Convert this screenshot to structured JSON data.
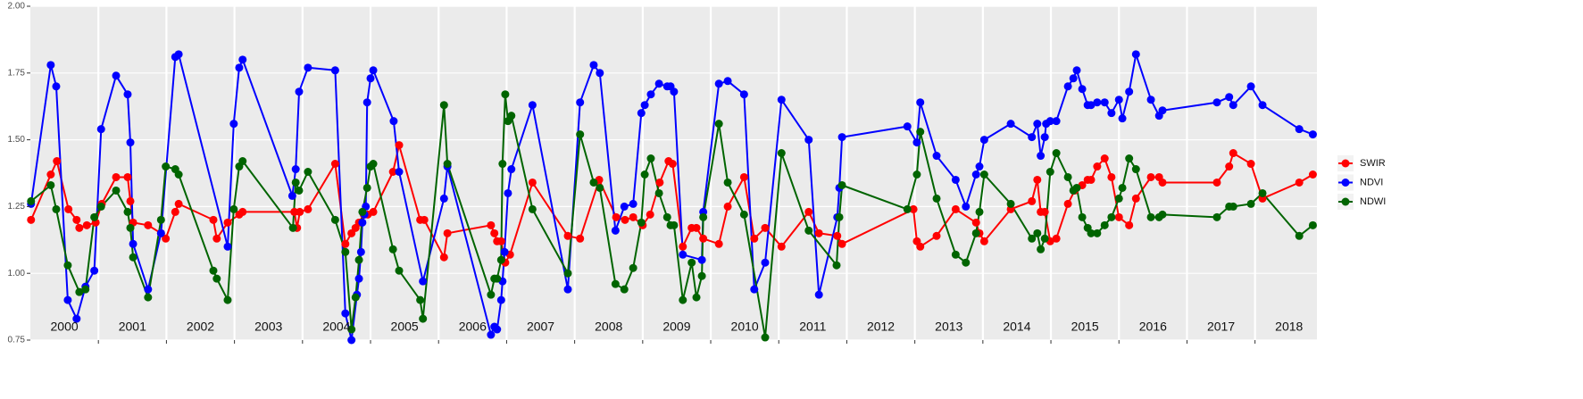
{
  "chart_data": {
    "type": "line",
    "xlim": [
      2000,
      2018.91
    ],
    "ylim": [
      0.75,
      2.0
    ],
    "yticks": [
      0.75,
      {
        "value": 1.0,
        "label": "1.00"
      },
      1.25,
      {
        "value": 1.5,
        "label": "1.50"
      },
      1.75,
      {
        "value": 2.0,
        "label": "2.00"
      }
    ],
    "xticks": [
      2001,
      2002,
      2003,
      2004,
      2005,
      2006,
      2007,
      2008,
      2009,
      2010,
      2011,
      2012,
      2013,
      2014,
      2015,
      2016,
      2017,
      2018
    ],
    "year_labels": [
      2000,
      2001,
      2002,
      2003,
      2004,
      2005,
      2006,
      2007,
      2008,
      2009,
      2010,
      2011,
      2012,
      2013,
      2014,
      2015,
      2016,
      2017,
      2018
    ],
    "grid": true,
    "legend": "right",
    "series": [
      {
        "name": "SWIR",
        "color": "#ff0000",
        "x": [
          2000.01,
          2000.3,
          2000.39,
          2000.56,
          2000.68,
          2000.72,
          2000.83,
          2000.96,
          2001.05,
          2001.26,
          2001.43,
          2001.47,
          2001.51,
          2001.73,
          2001.92,
          2001.99,
          2002.13,
          2002.18,
          2002.69,
          2002.74,
          2002.9,
          2003.07,
          2003.12,
          2003.88,
          2003.92,
          2003.96,
          2004.08,
          2004.48,
          2004.63,
          2004.72,
          2004.78,
          2004.83,
          2004.9,
          2004.96,
          2005.04,
          2005.33,
          2005.42,
          2005.73,
          2005.79,
          2006.08,
          2006.13,
          2006.77,
          2006.82,
          2006.86,
          2006.92,
          2006.98,
          2007.05,
          2007.38,
          2007.9,
          2008.08,
          2008.36,
          2008.61,
          2008.74,
          2008.86,
          2009.0,
          2009.11,
          2009.25,
          2009.38,
          2009.44,
          2009.59,
          2009.72,
          2009.79,
          2009.89,
          2010.12,
          2010.25,
          2010.49,
          2010.64,
          2010.8,
          2011.04,
          2011.44,
          2011.59,
          2011.86,
          2011.93,
          2012.98,
          2013.03,
          2013.08,
          2013.32,
          2013.6,
          2013.9,
          2013.95,
          2014.02,
          2014.41,
          2014.72,
          2014.8,
          2014.85,
          2014.91,
          2014.99,
          2015.08,
          2015.25,
          2015.35,
          2015.46,
          2015.54,
          2015.59,
          2015.68,
          2015.79,
          2015.89,
          2016.0,
          2016.15,
          2016.25,
          2016.47,
          2016.59,
          2016.64,
          2017.44,
          2017.62,
          2017.68,
          2017.94,
          2018.11,
          2018.65,
          2018.85
        ],
        "values": [
          1.2,
          1.37,
          1.42,
          1.24,
          1.2,
          1.17,
          1.18,
          1.19,
          1.26,
          1.36,
          1.36,
          1.27,
          1.19,
          1.18,
          1.15,
          1.13,
          1.23,
          1.26,
          1.2,
          1.13,
          1.19,
          1.22,
          1.23,
          1.23,
          1.17,
          1.23,
          1.24,
          1.41,
          1.11,
          1.15,
          1.17,
          1.19,
          1.22,
          1.22,
          1.23,
          1.38,
          1.48,
          1.2,
          1.2,
          1.06,
          1.15,
          1.18,
          1.15,
          1.12,
          1.12,
          1.04,
          1.07,
          1.34,
          1.14,
          1.13,
          1.35,
          1.21,
          1.2,
          1.21,
          1.18,
          1.22,
          1.34,
          1.42,
          1.41,
          1.1,
          1.17,
          1.17,
          1.13,
          1.11,
          1.25,
          1.36,
          1.13,
          1.17,
          1.1,
          1.23,
          1.15,
          1.14,
          1.11,
          1.24,
          1.12,
          1.1,
          1.14,
          1.24,
          1.19,
          1.15,
          1.12,
          1.24,
          1.27,
          1.35,
          1.23,
          1.23,
          1.12,
          1.13,
          1.26,
          1.31,
          1.33,
          1.35,
          1.35,
          1.4,
          1.43,
          1.36,
          1.21,
          1.18,
          1.28,
          1.36,
          1.36,
          1.34,
          1.34,
          1.4,
          1.45,
          1.41,
          1.28,
          1.34,
          1.37
        ]
      },
      {
        "name": "NDVI",
        "color": "#0000ff",
        "x": [
          2000.01,
          2000.3,
          2000.38,
          2000.55,
          2000.68,
          2000.81,
          2000.94,
          2001.04,
          2001.26,
          2001.43,
          2001.47,
          2001.51,
          2001.73,
          2001.92,
          2002.13,
          2002.18,
          2002.9,
          2002.99,
          2003.07,
          2003.12,
          2003.85,
          2003.9,
          2003.95,
          2004.08,
          2004.48,
          2004.63,
          2004.72,
          2004.8,
          2004.83,
          2004.86,
          2004.88,
          2004.91,
          2004.93,
          2004.95,
          2005.0,
          2005.04,
          2005.34,
          2005.42,
          2005.77,
          2006.08,
          2006.13,
          2006.77,
          2006.82,
          2006.86,
          2006.92,
          2006.94,
          2006.97,
          2007.02,
          2007.07,
          2007.38,
          2007.9,
          2008.08,
          2008.28,
          2008.37,
          2008.6,
          2008.73,
          2008.86,
          2008.98,
          2009.03,
          2009.12,
          2009.24,
          2009.36,
          2009.41,
          2009.46,
          2009.59,
          2009.87,
          2009.89,
          2010.12,
          2010.25,
          2010.49,
          2010.64,
          2010.8,
          2011.04,
          2011.44,
          2011.59,
          2011.86,
          2011.89,
          2011.93,
          2012.89,
          2013.03,
          2013.08,
          2013.32,
          2013.6,
          2013.75,
          2013.9,
          2013.95,
          2014.02,
          2014.41,
          2014.72,
          2014.8,
          2014.85,
          2014.91,
          2014.93,
          2014.99,
          2015.08,
          2015.25,
          2015.33,
          2015.38,
          2015.46,
          2015.54,
          2015.59,
          2015.68,
          2015.79,
          2015.89,
          2016.0,
          2016.05,
          2016.15,
          2016.25,
          2016.47,
          2016.59,
          2016.64,
          2017.44,
          2017.62,
          2017.68,
          2017.94,
          2018.11,
          2018.65,
          2018.85
        ],
        "values": [
          1.26,
          1.78,
          1.7,
          0.9,
          0.83,
          0.95,
          1.01,
          1.54,
          1.74,
          1.67,
          1.49,
          1.11,
          0.94,
          1.15,
          1.81,
          1.82,
          1.1,
          1.56,
          1.77,
          1.8,
          1.29,
          1.39,
          1.68,
          1.77,
          1.76,
          0.85,
          0.75,
          0.92,
          0.98,
          1.08,
          1.19,
          1.22,
          1.25,
          1.64,
          1.73,
          1.76,
          1.57,
          1.38,
          0.97,
          1.28,
          1.4,
          0.77,
          0.8,
          0.79,
          0.9,
          0.97,
          1.08,
          1.3,
          1.39,
          1.63,
          0.94,
          1.64,
          1.78,
          1.75,
          1.16,
          1.25,
          1.26,
          1.6,
          1.63,
          1.67,
          1.71,
          1.7,
          1.7,
          1.68,
          1.07,
          1.05,
          1.23,
          1.71,
          1.72,
          1.67,
          0.94,
          1.04,
          1.65,
          1.5,
          0.92,
          1.21,
          1.32,
          1.51,
          1.55,
          1.49,
          1.64,
          1.44,
          1.35,
          1.25,
          1.37,
          1.4,
          1.5,
          1.56,
          1.51,
          1.56,
          1.44,
          1.51,
          1.56,
          1.57,
          1.57,
          1.7,
          1.73,
          1.76,
          1.69,
          1.63,
          1.63,
          1.64,
          1.64,
          1.6,
          1.65,
          1.58,
          1.68,
          1.82,
          1.65,
          1.59,
          1.61,
          1.64,
          1.66,
          1.63,
          1.7,
          1.63,
          1.54,
          1.52
        ]
      },
      {
        "name": "NDWI",
        "color": "#006400",
        "x": [
          2000.01,
          2000.3,
          2000.38,
          2000.55,
          2000.72,
          2000.81,
          2000.94,
          2001.04,
          2001.26,
          2001.43,
          2001.47,
          2001.51,
          2001.73,
          2001.92,
          2001.99,
          2002.13,
          2002.18,
          2002.69,
          2002.74,
          2002.9,
          2002.99,
          2003.07,
          2003.12,
          2003.86,
          2003.9,
          2003.95,
          2004.08,
          2004.48,
          2004.63,
          2004.72,
          2004.78,
          2004.83,
          2004.88,
          2004.95,
          2005.0,
          2005.04,
          2005.33,
          2005.42,
          2005.73,
          2005.77,
          2006.08,
          2006.13,
          2006.77,
          2006.82,
          2006.86,
          2006.92,
          2006.94,
          2006.98,
          2007.02,
          2007.07,
          2007.38,
          2007.9,
          2008.08,
          2008.28,
          2008.37,
          2008.6,
          2008.73,
          2008.86,
          2008.98,
          2009.03,
          2009.12,
          2009.24,
          2009.36,
          2009.41,
          2009.46,
          2009.59,
          2009.72,
          2009.79,
          2009.87,
          2009.89,
          2010.12,
          2010.25,
          2010.49,
          2010.8,
          2011.04,
          2011.44,
          2011.85,
          2011.89,
          2011.93,
          2012.89,
          2013.03,
          2013.08,
          2013.32,
          2013.6,
          2013.75,
          2013.9,
          2013.95,
          2014.02,
          2014.41,
          2014.72,
          2014.8,
          2014.85,
          2014.91,
          2014.99,
          2015.08,
          2015.25,
          2015.33,
          2015.38,
          2015.46,
          2015.54,
          2015.59,
          2015.68,
          2015.79,
          2015.89,
          2016.0,
          2016.05,
          2016.15,
          2016.25,
          2016.47,
          2016.59,
          2016.64,
          2017.44,
          2017.62,
          2017.68,
          2017.94,
          2018.11,
          2018.65,
          2018.85
        ],
        "values": [
          1.27,
          1.33,
          1.24,
          1.03,
          0.93,
          0.94,
          1.21,
          1.25,
          1.31,
          1.23,
          1.17,
          1.06,
          0.91,
          1.2,
          1.4,
          1.39,
          1.37,
          1.01,
          0.98,
          0.9,
          1.24,
          1.4,
          1.42,
          1.17,
          1.34,
          1.31,
          1.38,
          1.2,
          1.08,
          0.79,
          0.91,
          1.05,
          1.23,
          1.32,
          1.4,
          1.41,
          1.09,
          1.01,
          0.9,
          0.83,
          1.63,
          1.41,
          0.92,
          0.98,
          0.98,
          1.05,
          1.41,
          1.67,
          1.57,
          1.59,
          1.24,
          1.0,
          1.52,
          1.34,
          1.32,
          0.96,
          0.94,
          1.02,
          1.19,
          1.37,
          1.43,
          1.3,
          1.21,
          1.18,
          1.18,
          0.9,
          1.04,
          0.91,
          0.99,
          1.21,
          1.56,
          1.34,
          1.22,
          0.76,
          1.45,
          1.16,
          1.03,
          1.21,
          1.33,
          1.24,
          1.37,
          1.53,
          1.28,
          1.07,
          1.04,
          1.15,
          1.23,
          1.37,
          1.26,
          1.13,
          1.15,
          1.09,
          1.13,
          1.38,
          1.45,
          1.36,
          1.31,
          1.32,
          1.21,
          1.17,
          1.15,
          1.15,
          1.18,
          1.21,
          1.28,
          1.32,
          1.43,
          1.39,
          1.21,
          1.21,
          1.22,
          1.21,
          1.25,
          1.25,
          1.26,
          1.3,
          1.14,
          1.18
        ]
      }
    ]
  }
}
